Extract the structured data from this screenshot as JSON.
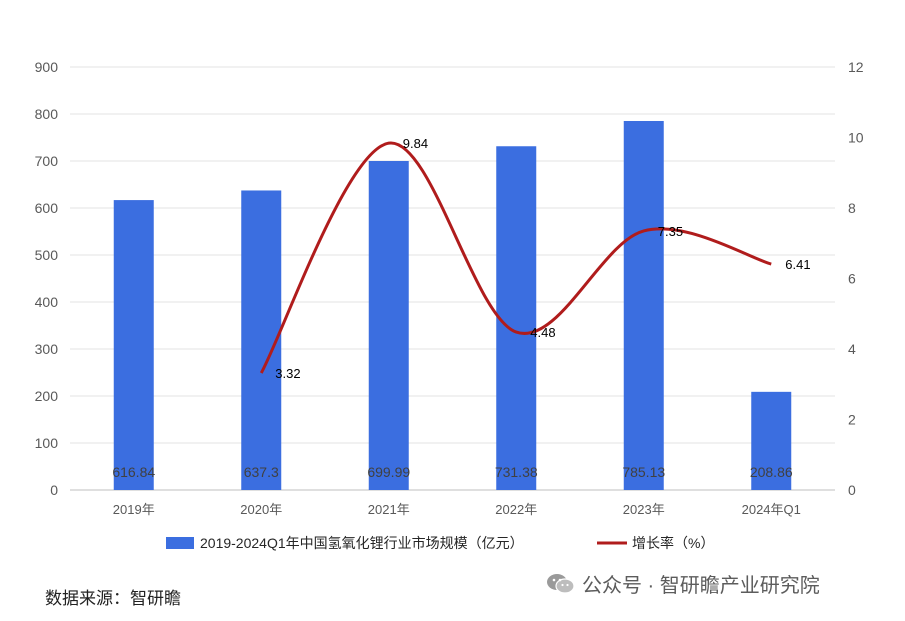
{
  "chart_data": {
    "type": "bar+line",
    "categories": [
      "2019年",
      "2020年",
      "2021年",
      "2022年",
      "2023年",
      "2024年Q1"
    ],
    "series": [
      {
        "name": "2019-2024Q1年中国氢氧化锂行业市场规模（亿元）",
        "type": "bar",
        "axis": "left",
        "color": "#3b6ee0",
        "values": [
          616.84,
          637.3,
          699.99,
          731.38,
          785.13,
          208.86
        ],
        "labels": [
          "616.84",
          "637.3",
          "699.99",
          "731.38",
          "785.13",
          "208.86"
        ]
      },
      {
        "name": "增长率（%）",
        "type": "line",
        "axis": "right",
        "color": "#b01c1c",
        "values": [
          null,
          3.32,
          9.84,
          4.48,
          7.35,
          6.41
        ],
        "labels": [
          "",
          "3.32",
          "9.84",
          "4.48",
          "7.35",
          "6.41"
        ]
      }
    ],
    "y_left": {
      "min": 0,
      "max": 900,
      "ticks": [
        "0",
        "100",
        "200",
        "300",
        "400",
        "500",
        "600",
        "700",
        "800",
        "900"
      ]
    },
    "y_right": {
      "min": 0,
      "max": 12,
      "ticks": [
        "0",
        "2",
        "4",
        "6",
        "8",
        "10",
        "12"
      ]
    },
    "grid": true,
    "legend": "bottom"
  },
  "source_text": "数据来源：智研瞻",
  "watermark": {
    "text": "公众号 · 智研瞻产业研究院",
    "icon": "wechat-icon"
  }
}
